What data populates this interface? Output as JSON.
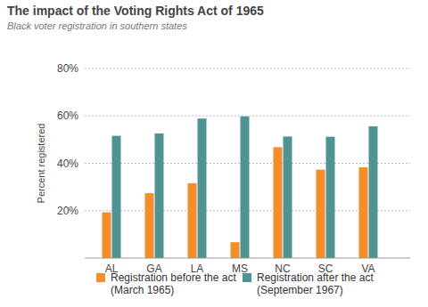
{
  "chart_data": {
    "type": "bar",
    "title": "The impact of the Voting Rights Act of 1965",
    "subtitle": "Black voter registration in southern states",
    "y_label": "Percent registered",
    "categories": [
      "AL",
      "GA",
      "LA",
      "MS",
      "NC",
      "SC",
      "VA"
    ],
    "series": [
      {
        "name": "Registration before the act (March 1965)",
        "color": "#f28e2b",
        "values": [
          19.3,
          27.4,
          31.6,
          6.7,
          46.8,
          37.3,
          38.3
        ]
      },
      {
        "name": "Registration after the act (September 1967)",
        "color": "#4f9494",
        "values": [
          51.6,
          52.6,
          58.9,
          59.8,
          51.3,
          51.2,
          55.6
        ]
      }
    ],
    "ylim": [
      0,
      80
    ],
    "yticks": [
      {
        "value": 20,
        "label": "20%"
      },
      {
        "value": 40,
        "label": "40%"
      },
      {
        "value": 60,
        "label": "60%"
      },
      {
        "value": 80,
        "label": "80%"
      }
    ],
    "grid": true,
    "legend": "bottom"
  }
}
